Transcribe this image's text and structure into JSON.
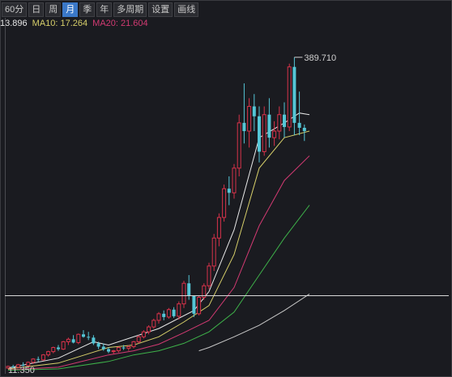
{
  "toolbar": {
    "tabs": [
      {
        "label": "60分",
        "active": false
      },
      {
        "label": "日",
        "active": false
      },
      {
        "label": "周",
        "active": false
      },
      {
        "label": "月",
        "active": true
      },
      {
        "label": "季",
        "active": false
      },
      {
        "label": "年",
        "active": false
      },
      {
        "label": "多周期",
        "active": false
      },
      {
        "label": "设置",
        "active": false
      },
      {
        "label": "画线",
        "active": false
      }
    ]
  },
  "ma_legend": {
    "ma5_value": "13.896",
    "ma10_label": "MA10: 17.264",
    "ma20_label": "MA20: 21.604"
  },
  "colors": {
    "up": "#d8324a",
    "down": "#54c6d6",
    "ma5": "#e8e8e8",
    "ma10": "#d7cf6a",
    "ma20": "#d23a72",
    "ma30": "#3eb24a",
    "ma60": "#c8c8c8"
  },
  "chart_data": {
    "type": "candlestick",
    "ylim": [
      9.0,
      420.0
    ],
    "high_label": "389.710",
    "low_label": "11.350",
    "crosshair_y": 100,
    "candles": [
      [
        12,
        15,
        11.35,
        14
      ],
      [
        14,
        16,
        12,
        13
      ],
      [
        13,
        17,
        12,
        16
      ],
      [
        16,
        19,
        14,
        15
      ],
      [
        15,
        20,
        14,
        19
      ],
      [
        19,
        24,
        17,
        23
      ],
      [
        23,
        26,
        20,
        22
      ],
      [
        22,
        29,
        21,
        28
      ],
      [
        28,
        33,
        26,
        32
      ],
      [
        32,
        38,
        30,
        37
      ],
      [
        37,
        40,
        33,
        35
      ],
      [
        35,
        45,
        34,
        44
      ],
      [
        44,
        49,
        40,
        47
      ],
      [
        47,
        52,
        42,
        43
      ],
      [
        43,
        54,
        41,
        53
      ],
      [
        53,
        58,
        49,
        50
      ],
      [
        50,
        56,
        46,
        49
      ],
      [
        49,
        52,
        40,
        42
      ],
      [
        42,
        44,
        35,
        38
      ],
      [
        38,
        42,
        33,
        35
      ],
      [
        35,
        37,
        30,
        32
      ],
      [
        32,
        34,
        29,
        33
      ],
      [
        33,
        38,
        31,
        37
      ],
      [
        37,
        40,
        34,
        36
      ],
      [
        36,
        40,
        33,
        38
      ],
      [
        38,
        45,
        36,
        44
      ],
      [
        44,
        52,
        42,
        50
      ],
      [
        50,
        58,
        48,
        56
      ],
      [
        56,
        64,
        53,
        62
      ],
      [
        62,
        72,
        60,
        70
      ],
      [
        70,
        80,
        66,
        78
      ],
      [
        78,
        82,
        70,
        74
      ],
      [
        74,
        85,
        72,
        83
      ],
      [
        83,
        86,
        73,
        75
      ],
      [
        75,
        93,
        71,
        90
      ],
      [
        90,
        118,
        85,
        115
      ],
      [
        115,
        125,
        95,
        100
      ],
      [
        100,
        100,
        74,
        78
      ],
      [
        78,
        100,
        76,
        98
      ],
      [
        98,
        115,
        95,
        112
      ],
      [
        112,
        140,
        108,
        136
      ],
      [
        136,
        175,
        130,
        170
      ],
      [
        170,
        200,
        160,
        195
      ],
      [
        195,
        235,
        190,
        230
      ],
      [
        230,
        245,
        210,
        225
      ],
      [
        225,
        260,
        218,
        255
      ],
      [
        255,
        320,
        245,
        310
      ],
      [
        310,
        358,
        285,
        300
      ],
      [
        300,
        340,
        280,
        330
      ],
      [
        330,
        345,
        300,
        318
      ],
      [
        318,
        330,
        262,
        275
      ],
      [
        275,
        330,
        270,
        320
      ],
      [
        320,
        340,
        280,
        292
      ],
      [
        292,
        312,
        282,
        300
      ],
      [
        300,
        330,
        290,
        320
      ],
      [
        320,
        335,
        292,
        305
      ],
      [
        305,
        382,
        300,
        378
      ],
      [
        378,
        389.71,
        295,
        310
      ],
      [
        310,
        348,
        295,
        304
      ],
      [
        304,
        308,
        288,
        300
      ]
    ],
    "ma_series": [
      {
        "label": "MA5",
        "color_key": "ma5",
        "x": [
          0,
          10,
          17,
          20,
          30,
          37,
          40,
          45,
          50,
          55,
          58,
          60
        ],
        "y": [
          12,
          24,
          44,
          40,
          60,
          82,
          105,
          180,
          292,
          310,
          322,
          320
        ]
      },
      {
        "label": "MA10",
        "color_key": "ma10",
        "x": [
          0,
          10,
          20,
          25,
          30,
          35,
          40,
          45,
          50,
          55,
          60
        ],
        "y": [
          11,
          18,
          37,
          40,
          50,
          68,
          88,
          150,
          255,
          292,
          300
        ]
      },
      {
        "label": "MA20",
        "color_key": "ma20",
        "x": [
          0,
          10,
          20,
          25,
          30,
          35,
          40,
          45,
          50,
          55,
          60
        ],
        "y": [
          10,
          13,
          28,
          33,
          41,
          55,
          70,
          110,
          185,
          240,
          270
        ]
      },
      {
        "label": "MA30",
        "color_key": "ma30",
        "x": [
          0,
          10,
          20,
          25,
          30,
          35,
          40,
          45,
          50,
          55,
          60
        ],
        "y": [
          9.5,
          11,
          20,
          28,
          33,
          42,
          56,
          80,
          125,
          170,
          210
        ]
      },
      {
        "label": "MA60",
        "color_key": "ma60",
        "x": [
          38,
          40,
          45,
          50,
          55,
          60
        ],
        "y": [
          33,
          37,
          50,
          64,
          82,
          102
        ]
      }
    ]
  }
}
